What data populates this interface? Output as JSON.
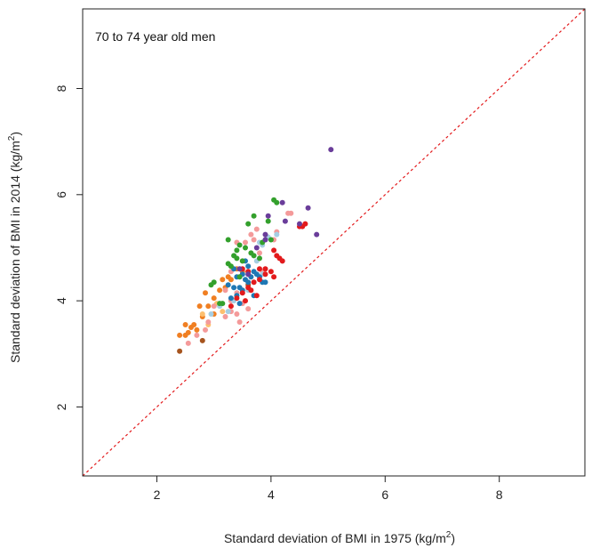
{
  "chart_data": {
    "type": "scatter",
    "title": "",
    "annotation": "70 to 74 year old men",
    "xlabel_main": "Standard deviation of BMI in 1975 (kg/m",
    "xlabel_sup": "2",
    "xlabel_end": ")",
    "ylabel_main": "Standard deviation of BMI in 2014 (kg/m",
    "ylabel_sup": "2",
    "ylabel_end": ")",
    "xlim": [
      0.7,
      9.5
    ],
    "ylim": [
      0.7,
      9.5
    ],
    "xticks": [
      2,
      4,
      6,
      8
    ],
    "yticks": [
      2,
      4,
      6,
      8
    ],
    "x_tick_labels": [
      "2",
      "4",
      "6",
      "8"
    ],
    "y_tick_labels": [
      "2",
      "4",
      "6",
      "8"
    ],
    "grid": false,
    "reference_line": {
      "style": "dotted",
      "color": "#e31a1c",
      "slope": 1,
      "intercept": 0
    },
    "colors": {
      "orange": "#f07f22",
      "brown": "#a6541e",
      "light_orange": "#fdbf6f",
      "pink": "#f49a9a",
      "light_blue": "#a6cee3",
      "blue": "#1f78b4",
      "green": "#33a02c",
      "red": "#e31a1c",
      "purple": "#6a3d9a"
    },
    "series": [
      {
        "color": "#f07f22",
        "points": [
          [
            2.4,
            3.35
          ],
          [
            2.5,
            3.55
          ],
          [
            2.55,
            3.4
          ],
          [
            2.6,
            3.5
          ],
          [
            2.7,
            3.45
          ],
          [
            2.8,
            3.7
          ],
          [
            2.75,
            3.9
          ],
          [
            2.9,
            3.9
          ],
          [
            2.85,
            4.15
          ],
          [
            3.0,
            4.05
          ],
          [
            3.1,
            4.2
          ],
          [
            3.2,
            4.25
          ],
          [
            3.25,
            4.45
          ],
          [
            3.3,
            4.4
          ],
          [
            3.4,
            4.6
          ],
          [
            3.5,
            4.55
          ],
          [
            3.0,
            3.75
          ],
          [
            2.5,
            3.35
          ],
          [
            2.65,
            3.55
          ],
          [
            3.15,
            4.4
          ]
        ]
      },
      {
        "color": "#a6541e",
        "points": [
          [
            2.4,
            3.05
          ],
          [
            2.8,
            3.25
          ],
          [
            3.6,
            4.3
          ]
        ]
      },
      {
        "color": "#fdbf6f",
        "points": [
          [
            2.8,
            3.75
          ],
          [
            3.05,
            3.95
          ],
          [
            2.9,
            3.55
          ],
          [
            3.15,
            3.8
          ]
        ]
      },
      {
        "color": "#f49a9a",
        "points": [
          [
            2.55,
            3.2
          ],
          [
            2.7,
            3.35
          ],
          [
            2.9,
            3.6
          ],
          [
            3.0,
            3.9
          ],
          [
            3.2,
            3.7
          ],
          [
            3.3,
            4.0
          ],
          [
            3.4,
            3.75
          ],
          [
            3.5,
            3.95
          ],
          [
            3.6,
            3.85
          ],
          [
            3.4,
            4.15
          ],
          [
            3.3,
            4.55
          ],
          [
            3.5,
            4.75
          ],
          [
            3.55,
            5.1
          ],
          [
            3.7,
            5.15
          ],
          [
            3.65,
            5.25
          ],
          [
            3.8,
            4.9
          ],
          [
            4.05,
            5.15
          ],
          [
            4.1,
            5.3
          ],
          [
            4.3,
            5.65
          ],
          [
            4.35,
            5.65
          ],
          [
            3.4,
            5.1
          ],
          [
            3.75,
            5.35
          ],
          [
            3.2,
            4.2
          ],
          [
            3.6,
            4.55
          ],
          [
            3.85,
            4.55
          ],
          [
            3.3,
            3.8
          ],
          [
            3.45,
            3.6
          ],
          [
            2.85,
            3.45
          ]
        ]
      },
      {
        "color": "#a6cee3",
        "points": [
          [
            2.95,
            3.75
          ],
          [
            3.1,
            3.9
          ],
          [
            3.25,
            3.8
          ],
          [
            3.35,
            4.0
          ],
          [
            3.5,
            4.15
          ],
          [
            3.6,
            4.2
          ],
          [
            3.7,
            4.35
          ],
          [
            3.85,
            4.5
          ],
          [
            4.2,
            4.75
          ],
          [
            3.75,
            4.75
          ],
          [
            3.85,
            5.05
          ],
          [
            3.9,
            5.15
          ],
          [
            3.95,
            5.2
          ],
          [
            4.1,
            5.25
          ],
          [
            3.45,
            4.45
          ],
          [
            3.6,
            4.5
          ],
          [
            3.8,
            5.1
          ]
        ]
      },
      {
        "color": "#1f78b4",
        "points": [
          [
            3.3,
            4.05
          ],
          [
            3.4,
            4.1
          ],
          [
            3.45,
            4.25
          ],
          [
            3.5,
            4.2
          ],
          [
            3.55,
            4.4
          ],
          [
            3.6,
            4.35
          ],
          [
            3.65,
            4.45
          ],
          [
            3.7,
            4.55
          ],
          [
            3.75,
            4.5
          ],
          [
            3.8,
            4.45
          ],
          [
            3.85,
            4.35
          ],
          [
            3.5,
            4.5
          ],
          [
            3.4,
            4.45
          ],
          [
            3.35,
            4.6
          ],
          [
            3.55,
            4.75
          ],
          [
            3.6,
            4.65
          ],
          [
            3.7,
            4.1
          ],
          [
            3.9,
            4.35
          ],
          [
            3.45,
            3.95
          ],
          [
            3.25,
            4.3
          ],
          [
            3.35,
            4.25
          ]
        ]
      },
      {
        "color": "#33a02c",
        "points": [
          [
            2.95,
            4.3
          ],
          [
            3.0,
            4.35
          ],
          [
            3.1,
            3.95
          ],
          [
            3.25,
            4.7
          ],
          [
            3.3,
            4.65
          ],
          [
            3.35,
            4.85
          ],
          [
            3.4,
            4.95
          ],
          [
            3.45,
            5.05
          ],
          [
            3.4,
            4.8
          ],
          [
            3.25,
            5.15
          ],
          [
            3.55,
            5.0
          ],
          [
            3.6,
            5.45
          ],
          [
            3.7,
            4.85
          ],
          [
            3.8,
            4.8
          ],
          [
            3.85,
            5.1
          ],
          [
            4.0,
            5.15
          ],
          [
            4.05,
            5.9
          ],
          [
            4.1,
            5.85
          ],
          [
            3.7,
            5.6
          ],
          [
            3.45,
            4.45
          ],
          [
            3.15,
            3.95
          ],
          [
            3.5,
            4.75
          ],
          [
            3.95,
            5.5
          ],
          [
            3.65,
            4.9
          ]
        ]
      },
      {
        "color": "#e31a1c",
        "points": [
          [
            3.3,
            3.9
          ],
          [
            3.4,
            4.05
          ],
          [
            3.5,
            4.15
          ],
          [
            3.55,
            4.0
          ],
          [
            3.6,
            4.25
          ],
          [
            3.65,
            4.2
          ],
          [
            3.7,
            4.35
          ],
          [
            3.75,
            4.1
          ],
          [
            3.8,
            4.4
          ],
          [
            3.9,
            4.5
          ],
          [
            3.9,
            4.6
          ],
          [
            4.0,
            4.55
          ],
          [
            4.05,
            4.45
          ],
          [
            4.1,
            4.85
          ],
          [
            4.15,
            4.8
          ],
          [
            4.2,
            4.75
          ],
          [
            3.6,
            4.55
          ],
          [
            3.5,
            4.6
          ],
          [
            4.5,
            5.4
          ],
          [
            4.6,
            5.45
          ],
          [
            4.55,
            5.4
          ],
          [
            3.8,
            4.6
          ],
          [
            4.05,
            4.95
          ]
        ]
      },
      {
        "color": "#6a3d9a",
        "points": [
          [
            3.45,
            4.6
          ],
          [
            3.6,
            4.5
          ],
          [
            3.9,
            5.25
          ],
          [
            3.95,
            5.6
          ],
          [
            4.2,
            5.85
          ],
          [
            4.25,
            5.5
          ],
          [
            4.5,
            5.45
          ],
          [
            4.65,
            5.75
          ],
          [
            4.8,
            5.25
          ],
          [
            5.05,
            6.85
          ],
          [
            3.9,
            5.15
          ],
          [
            3.75,
            5.0
          ]
        ]
      }
    ]
  }
}
